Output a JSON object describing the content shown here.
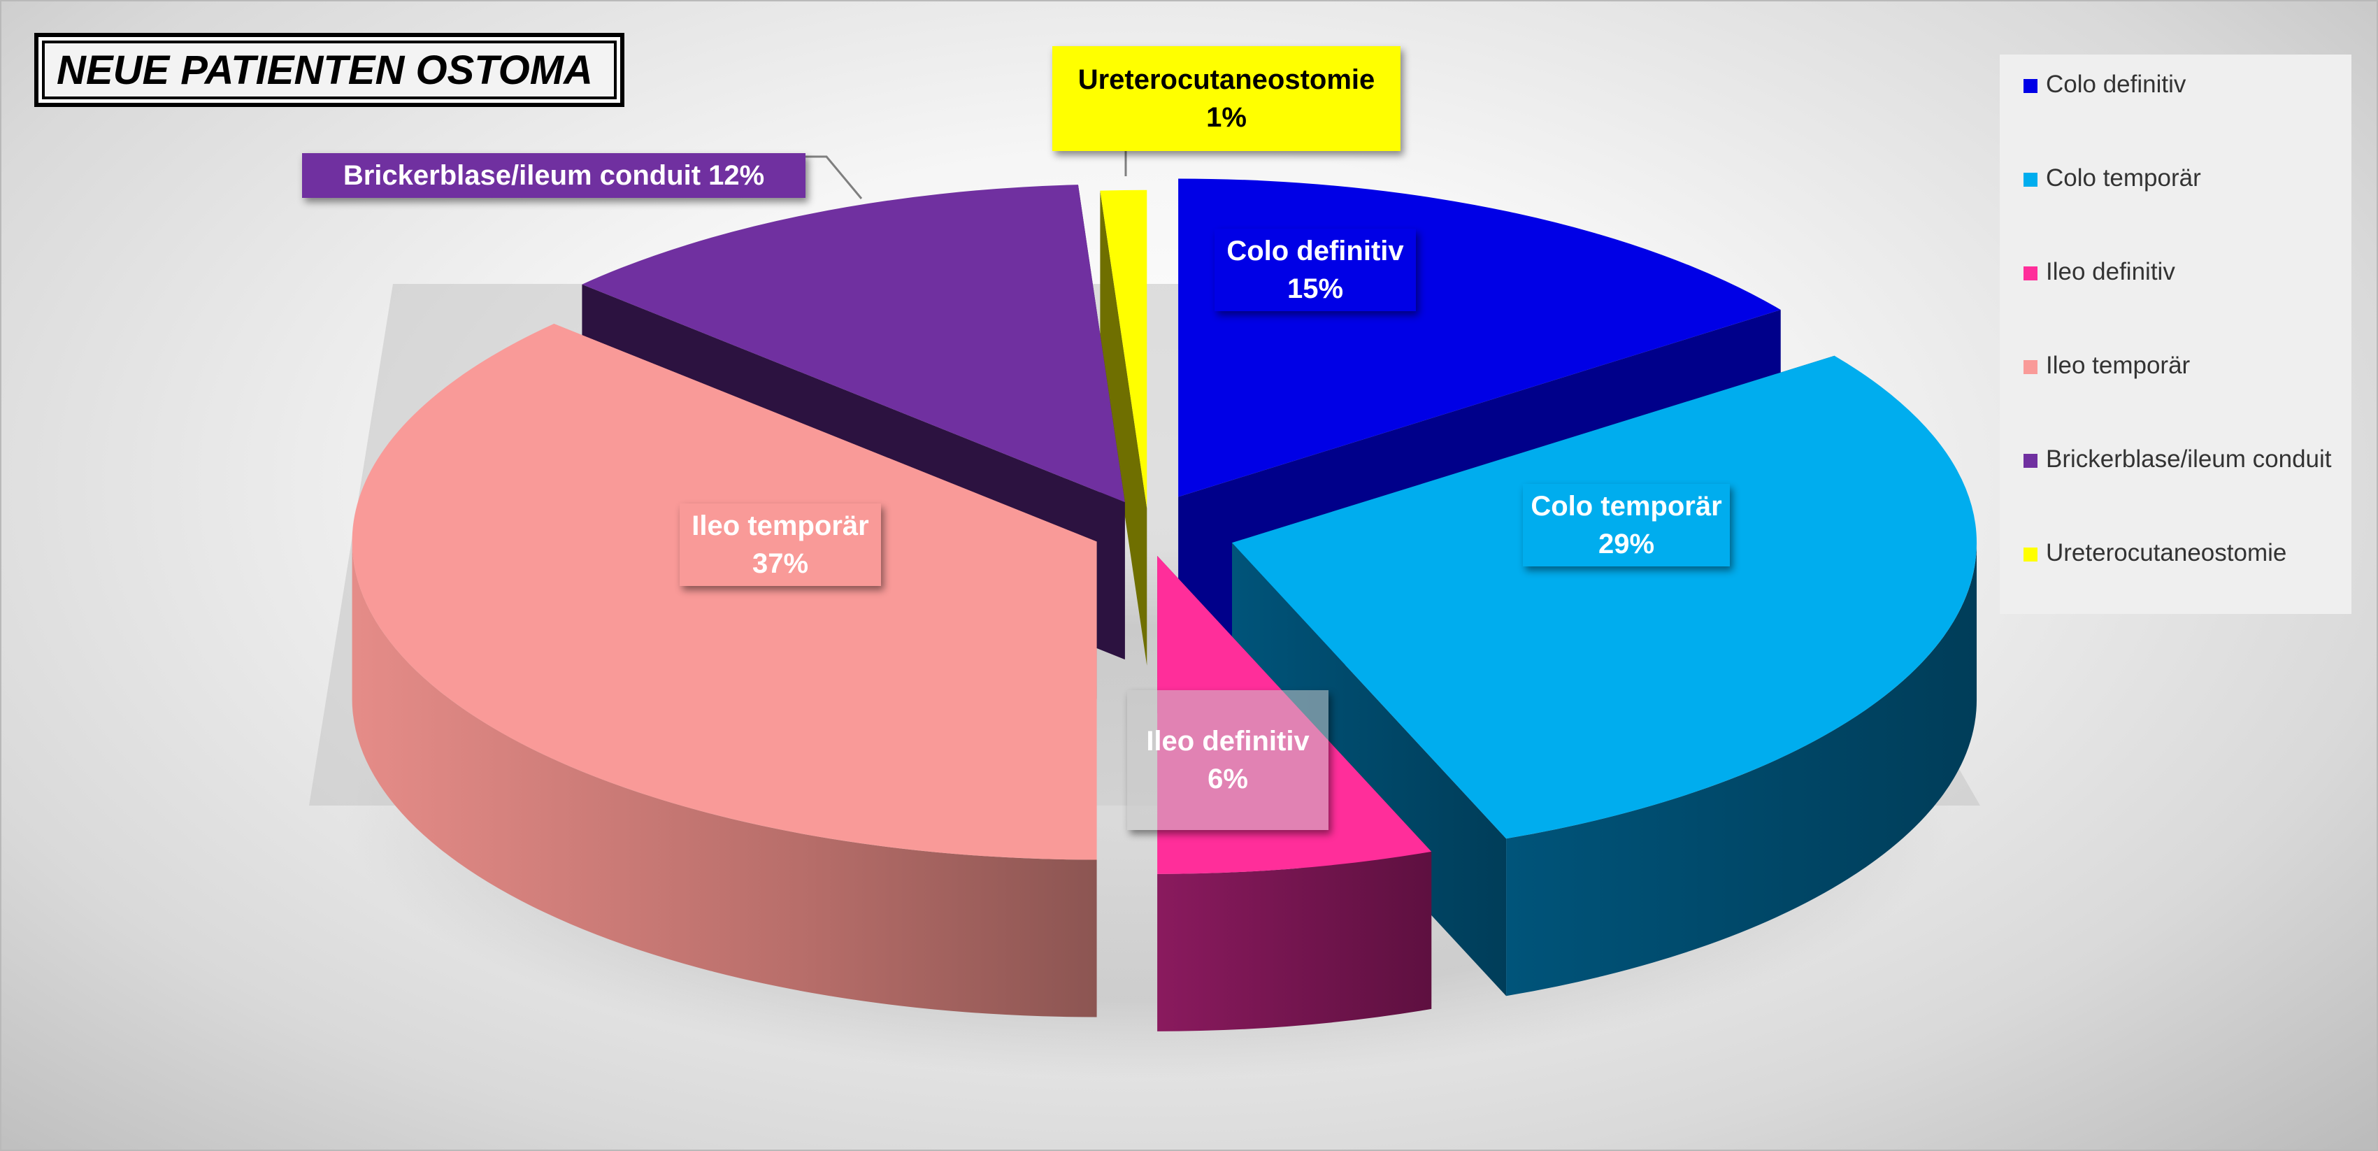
{
  "chart_data": {
    "type": "pie",
    "title": "NEUE PATIENTEN OSTOMA",
    "categories": [
      "Colo definitiv",
      "Colo temporär",
      "Ileo definitiv",
      "Ileo temporär",
      "Brickerblase/ileum conduit",
      "Ureterocutaneostomie"
    ],
    "values": [
      15,
      29,
      6,
      37,
      12,
      1
    ],
    "labels": [
      "15%",
      "29%",
      "6%",
      "37%",
      "12%",
      "1%"
    ],
    "legend": [
      "Colo definitiv",
      "Colo temporär",
      "Ileo definitiv",
      "Ileo temporär",
      "Brickerblase/ileum conduit",
      "Ureterocutaneostomie"
    ],
    "legend_position": "right",
    "exploded": true,
    "three_d": true,
    "colors": [
      "#0000e6",
      "#00adee",
      "#ff2e9a",
      "#f99a98",
      "#7030a0",
      "#ffff00"
    ]
  }
}
